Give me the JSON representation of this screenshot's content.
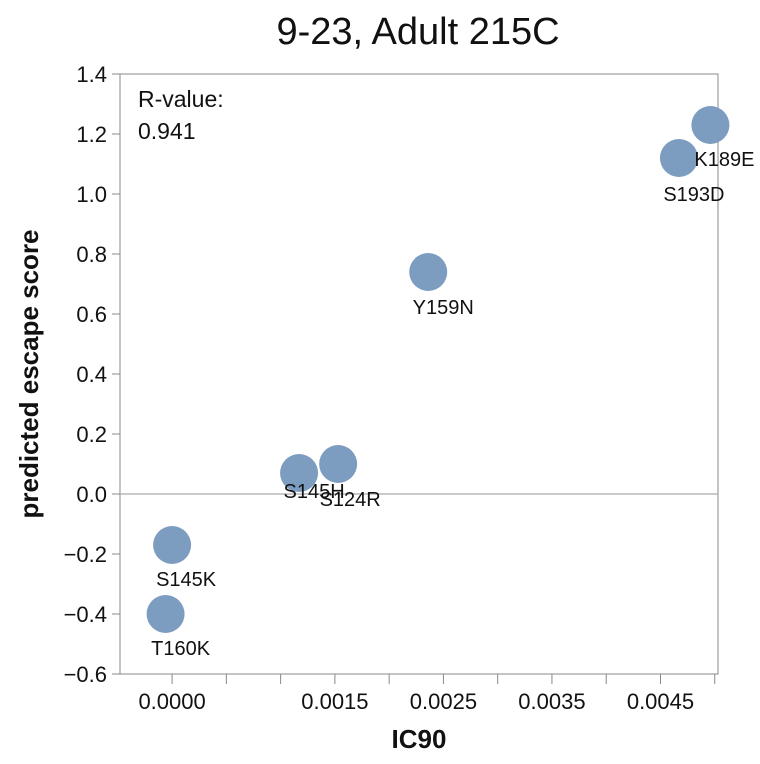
{
  "chart_data": {
    "type": "scatter",
    "title": "9-23, Adult 215C",
    "xlabel": "IC90",
    "ylabel": "predicted escape score",
    "xlim": [
      -0.00048,
      0.00503
    ],
    "ylim": [
      -0.6,
      1.4
    ],
    "x_ticks": [
      0.0,
      0.0005,
      0.001,
      0.0015,
      0.002,
      0.0025,
      0.003,
      0.0035,
      0.004,
      0.0045,
      0.005
    ],
    "x_tick_labels": [
      "0.0000",
      "",
      "",
      "0.0015",
      "",
      "0.0025",
      "",
      "0.0035",
      "",
      "0.0045",
      ""
    ],
    "y_ticks": [
      -0.6,
      -0.4,
      -0.2,
      0.0,
      0.2,
      0.4,
      0.6,
      0.8,
      1.0,
      1.2,
      1.4
    ],
    "y_tick_labels": [
      "−0.6",
      "−0.4",
      "−0.2",
      "0.0",
      "0.2",
      "0.4",
      "0.6",
      "0.8",
      "1.0",
      "1.2",
      "1.4"
    ],
    "zero_line": true,
    "grid": false,
    "point_color": "#7c9cc0",
    "annotation": {
      "label": "R-value:",
      "value": "0.941",
      "placement": "top-left"
    },
    "points": [
      {
        "label": "T160K",
        "x": -6e-05,
        "y": -0.4
      },
      {
        "label": "S145K",
        "x": 0.0,
        "y": -0.17
      },
      {
        "label": "S145H",
        "x": 0.00117,
        "y": 0.07
      },
      {
        "label": "S124R",
        "x": 0.00153,
        "y": 0.1
      },
      {
        "label": "Y159N",
        "x": 0.00236,
        "y": 0.74
      },
      {
        "label": "S193D",
        "x": 0.00467,
        "y": 1.12
      },
      {
        "label": "K189E",
        "x": 0.00496,
        "y": 1.23
      }
    ]
  }
}
